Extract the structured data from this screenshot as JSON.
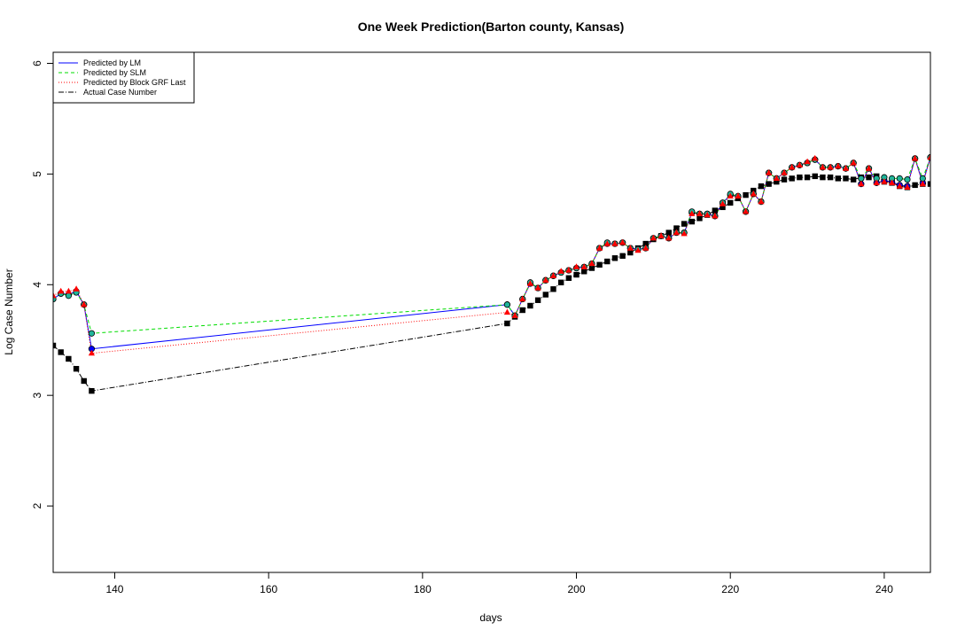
{
  "chart_data": {
    "type": "line",
    "title": "One Week Prediction(Barton county, Kansas)",
    "xlabel": "days",
    "ylabel": "Log Case Number",
    "xlim": [
      132,
      246
    ],
    "ylim": [
      1.4,
      6.1
    ],
    "x_ticks": [
      140,
      160,
      180,
      200,
      220,
      240
    ],
    "y_ticks": [
      2,
      3,
      4,
      5,
      6
    ],
    "legend": {
      "position": "top-left",
      "entries": [
        "Predicted by LM",
        "Predicted by SLM",
        "Predicted by Block GRF Last",
        "Actual Case Number"
      ]
    },
    "colors": {
      "lm": "#0000ff",
      "slm": "#00dd00",
      "grf": "#ff0000",
      "actual": "#000000",
      "lm_marker": "#0000ff",
      "slm_marker": "#1fb59a",
      "grf_marker": "#ff0000",
      "actual_marker": "#000000"
    },
    "x": [
      132,
      133,
      134,
      135,
      136,
      137,
      191,
      192,
      193,
      194,
      195,
      196,
      197,
      198,
      199,
      200,
      201,
      202,
      203,
      204,
      205,
      206,
      207,
      208,
      209,
      210,
      211,
      212,
      213,
      214,
      215,
      216,
      217,
      218,
      219,
      220,
      221,
      222,
      223,
      224,
      225,
      226,
      227,
      228,
      229,
      230,
      231,
      232,
      233,
      234,
      235,
      236,
      237,
      238,
      239,
      240,
      241,
      242,
      243,
      244,
      245,
      246
    ],
    "series": [
      {
        "name": "Predicted by LM",
        "values": [
          3.87,
          3.92,
          3.91,
          3.94,
          3.82,
          3.42,
          3.82,
          3.72,
          3.87,
          4.01,
          3.97,
          4.04,
          4.08,
          4.11,
          4.13,
          4.15,
          4.16,
          4.19,
          4.33,
          4.37,
          4.37,
          4.38,
          4.33,
          4.32,
          4.33,
          4.42,
          4.44,
          4.42,
          4.47,
          4.47,
          4.65,
          4.64,
          4.64,
          4.62,
          4.74,
          4.81,
          4.8,
          4.66,
          4.82,
          4.75,
          5.01,
          4.96,
          5.01,
          5.06,
          5.08,
          5.1,
          5.13,
          5.06,
          5.06,
          5.07,
          5.05,
          5.1,
          4.91,
          5.05,
          4.92,
          4.94,
          4.93,
          4.9,
          4.89,
          5.14,
          4.92,
          5.15
        ]
      },
      {
        "name": "Predicted by SLM",
        "values": [
          3.87,
          3.92,
          3.9,
          3.93,
          3.82,
          3.56,
          3.82,
          3.72,
          3.87,
          4.02,
          3.97,
          4.04,
          4.08,
          4.11,
          4.13,
          4.15,
          4.16,
          4.19,
          4.33,
          4.38,
          4.37,
          4.38,
          4.33,
          4.32,
          4.33,
          4.42,
          4.44,
          4.42,
          4.47,
          4.47,
          4.66,
          4.64,
          4.64,
          4.62,
          4.74,
          4.82,
          4.8,
          4.66,
          4.82,
          4.75,
          5.01,
          4.96,
          5.01,
          5.06,
          5.08,
          5.1,
          5.13,
          5.06,
          5.06,
          5.07,
          5.05,
          5.1,
          4.96,
          5.05,
          4.96,
          4.97,
          4.96,
          4.96,
          4.95,
          5.14,
          4.96,
          5.15
        ]
      },
      {
        "name": "Predicted by Block GRF Last",
        "values": [
          3.9,
          3.94,
          3.94,
          3.96,
          3.82,
          3.38,
          3.75,
          3.72,
          3.87,
          4.01,
          3.97,
          4.04,
          4.08,
          4.12,
          4.13,
          4.16,
          4.16,
          4.19,
          4.33,
          4.37,
          4.37,
          4.38,
          4.33,
          4.31,
          4.33,
          4.42,
          4.44,
          4.42,
          4.47,
          4.46,
          4.64,
          4.64,
          4.63,
          4.62,
          4.73,
          4.8,
          4.8,
          4.66,
          4.82,
          4.75,
          5.01,
          4.96,
          5.01,
          5.06,
          5.08,
          5.11,
          5.14,
          5.06,
          5.06,
          5.07,
          5.05,
          5.1,
          4.91,
          5.05,
          4.92,
          4.93,
          4.92,
          4.89,
          4.88,
          5.14,
          4.91,
          5.15
        ]
      },
      {
        "name": "Actual Case Number",
        "values": [
          3.45,
          3.39,
          3.33,
          3.24,
          3.13,
          3.04,
          3.65,
          3.71,
          3.77,
          3.81,
          3.86,
          3.91,
          3.96,
          4.02,
          4.06,
          4.09,
          4.12,
          4.15,
          4.18,
          4.21,
          4.24,
          4.26,
          4.29,
          4.33,
          4.37,
          4.41,
          4.44,
          4.47,
          4.51,
          4.55,
          4.57,
          4.6,
          4.63,
          4.67,
          4.7,
          4.74,
          4.78,
          4.81,
          4.85,
          4.89,
          4.91,
          4.93,
          4.95,
          4.96,
          4.97,
          4.97,
          4.98,
          4.97,
          4.97,
          4.96,
          4.96,
          4.95,
          4.97,
          4.97,
          4.98,
          4.93,
          4.92,
          4.89,
          4.88,
          4.9,
          4.91,
          4.91
        ]
      }
    ]
  }
}
